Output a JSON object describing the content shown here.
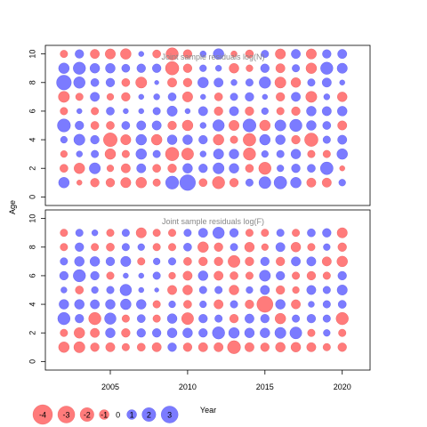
{
  "chart_data": [
    {
      "type": "scatter",
      "title": "Joint sample residuals log(N)",
      "xlabel": "",
      "ylabel": "Age",
      "xlim": [
        2000.8,
        2021.8
      ],
      "ylim": [
        -0.6,
        10.6
      ],
      "x_ticks": [],
      "y_ticks": [
        0,
        2,
        4,
        6,
        8,
        10
      ],
      "years": [
        2002,
        2003,
        2004,
        2005,
        2006,
        2007,
        2008,
        2009,
        2010,
        2011,
        2012,
        2013,
        2014,
        2015,
        2016,
        2017,
        2018,
        2019,
        2020
      ],
      "ages": [
        1,
        2,
        3,
        4,
        5,
        6,
        7,
        8,
        9,
        10
      ],
      "residuals": [
        [
          1.2,
          -0.3,
          -0.8,
          -0.8,
          -1.1,
          -1.2,
          -0.6,
          1.8,
          2.6,
          -0.7,
          -1.6,
          -0.8,
          0.6,
          1.5,
          1.7,
          1.2,
          -0.9,
          -0.9,
          0.5
        ],
        [
          -0.7,
          -1.2,
          1.3,
          -0.5,
          -0.9,
          0.9,
          -0.7,
          -0.8,
          1.0,
          0.8,
          1.3,
          1.0,
          -0.7,
          -1.6,
          0.5,
          0.8,
          0.7,
          1.7,
          -0.3
        ],
        [
          -0.5,
          0.4,
          0.6,
          -1.2,
          -0.6,
          1.2,
          0.6,
          -1.9,
          -1.5,
          0.4,
          1.1,
          1.0,
          -1.6,
          0.5,
          0.6,
          1.0,
          -0.6,
          -0.6,
          1.2
        ],
        [
          0.5,
          1.3,
          0.8,
          -2.0,
          -1.1,
          1.2,
          -1.2,
          1.0,
          1.0,
          0.8,
          -1.2,
          -0.6,
          -1.7,
          1.2,
          1.0,
          -0.8,
          -1.9,
          0.6,
          0.9
        ],
        [
          1.8,
          0.8,
          -0.7,
          -0.7,
          0.7,
          0.9,
          0.9,
          -0.8,
          -1.2,
          0.4,
          1.4,
          -1.1,
          1.8,
          -1.2,
          1.3,
          1.6,
          1.0,
          0.7,
          -0.9
        ],
        [
          -0.6,
          0.3,
          -0.6,
          0.7,
          0.3,
          0.3,
          0.6,
          1.1,
          0.3,
          0.9,
          -0.8,
          0.9,
          -0.8,
          0.5,
          -0.6,
          -0.8,
          1.0,
          0.9,
          1.0
        ],
        [
          -1.3,
          -0.6,
          0.9,
          -0.5,
          -0.8,
          0.3,
          0.4,
          0.7,
          -1.1,
          0.3,
          -0.7,
          0.6,
          0.8,
          0.3,
          -0.8,
          0.9,
          -1.3,
          0.4,
          -1.0
        ],
        [
          2.3,
          1.4,
          0.7,
          0.8,
          -0.7,
          -1.3,
          0.2,
          -0.9,
          -0.8,
          1.2,
          0.9,
          0.4,
          0.6,
          1.4,
          -1.3,
          -1.0,
          0.6,
          0.9,
          0.3
        ],
        [
          1.2,
          1.6,
          1.0,
          1.0,
          0.7,
          0.8,
          0.8,
          -1.9,
          -0.8,
          0.5,
          0.4,
          -1.0,
          -0.5,
          0.8,
          -0.9,
          0.6,
          -1.2,
          1.6,
          1.1
        ],
        [
          -0.6,
          0.8,
          -0.9,
          -1.1,
          -1.2,
          0.3,
          -0.7,
          -1.6,
          -0.8,
          0.4,
          1.2,
          -0.4,
          -0.7,
          0.6,
          -1.1,
          0.9,
          -1.1,
          0.8,
          0.9
        ]
      ]
    },
    {
      "type": "scatter",
      "title": "Joint sample residuals log(F)",
      "xlabel": "Year",
      "ylabel": "Age",
      "xlim": [
        2000.8,
        2021.8
      ],
      "ylim": [
        -0.6,
        10.6
      ],
      "x_ticks": [
        2005,
        2010,
        2015,
        2020
      ],
      "y_ticks": [
        0,
        2,
        4,
        6,
        8,
        10
      ],
      "years": [
        2002,
        2003,
        2004,
        2005,
        2006,
        2007,
        2008,
        2009,
        2010,
        2011,
        2012,
        2013,
        2014,
        2015,
        2016,
        2017,
        2018,
        2019,
        2020
      ],
      "ages": [
        1,
        2,
        3,
        4,
        5,
        6,
        7,
        8,
        9
      ],
      "residuals": [
        [
          -1.2,
          -1.3,
          -0.8,
          -0.9,
          -0.6,
          -0.7,
          -0.9,
          0.8,
          -0.8,
          -0.9,
          -0.9,
          -1.8,
          -0.9,
          -0.8,
          -1.0,
          -1.0,
          -0.9,
          -0.6,
          -0.8
        ],
        [
          -0.6,
          -1.2,
          -0.9,
          1.0,
          -0.8,
          0.8,
          0.8,
          1.0,
          1.0,
          0.8,
          1.6,
          1.2,
          1.0,
          1.0,
          1.3,
          1.5,
          -0.6,
          0.5,
          -0.6
        ],
        [
          1.6,
          0.8,
          -1.6,
          1.4,
          -0.6,
          0.7,
          -0.6,
          1.0,
          -1.5,
          0.8,
          0.6,
          -0.8,
          0.9,
          0.8,
          -1.2,
          0.6,
          0.8,
          0.6,
          -1.6
        ],
        [
          1.0,
          1.0,
          0.9,
          1.0,
          1.2,
          1.0,
          -0.6,
          0.5,
          -0.7,
          0.5,
          -0.9,
          0.6,
          -0.8,
          -2.7,
          1.0,
          -0.9,
          0.4,
          0.6,
          0.7
        ],
        [
          0.4,
          -0.7,
          0.5,
          0.6,
          1.4,
          0.3,
          0.2,
          -0.9,
          -1.0,
          0.6,
          0.6,
          -1.0,
          0.5,
          0.9,
          -0.8,
          -0.5,
          0.9,
          0.6,
          1.1
        ],
        [
          0.8,
          1.6,
          0.8,
          -0.6,
          0.3,
          0.3,
          0.6,
          -0.5,
          -0.9,
          1.0,
          -0.9,
          -0.7,
          -0.6,
          1.3,
          0.8,
          -0.6,
          -0.8,
          -0.6,
          0.8
        ],
        [
          0.6,
          1.0,
          1.0,
          0.8,
          1.1,
          -0.6,
          0.5,
          0.6,
          -0.7,
          -0.8,
          -0.8,
          -1.5,
          -0.8,
          0.8,
          -0.8,
          0.9,
          0.9,
          -0.9,
          -1.2
        ],
        [
          -0.6,
          0.8,
          -0.6,
          -0.7,
          0.6,
          0.5,
          -0.6,
          -0.6,
          0.7,
          -1.2,
          -0.8,
          0.6,
          -1.0,
          -0.5,
          0.9,
          -1.0,
          -0.6,
          0.5,
          -0.8
        ],
        [
          -0.6,
          0.6,
          0.4,
          -0.6,
          0.6,
          -1.1,
          -0.6,
          -0.6,
          0.6,
          0.9,
          1.4,
          0.8,
          -0.6,
          -0.6,
          0.6,
          -0.6,
          0.7,
          0.8,
          -1.1
        ]
      ]
    }
  ],
  "legend": {
    "values": [
      "-4",
      "-3",
      "-2",
      "-1",
      "0",
      "1",
      "2",
      "3"
    ],
    "numeric": [
      -4,
      -3,
      -2,
      -1,
      0,
      1,
      2,
      3
    ],
    "position": "bottom-left"
  },
  "colors": {
    "negative": "#ff5a5a",
    "positive": "#5a5aff",
    "tick": "#000000",
    "title": "#888888"
  }
}
